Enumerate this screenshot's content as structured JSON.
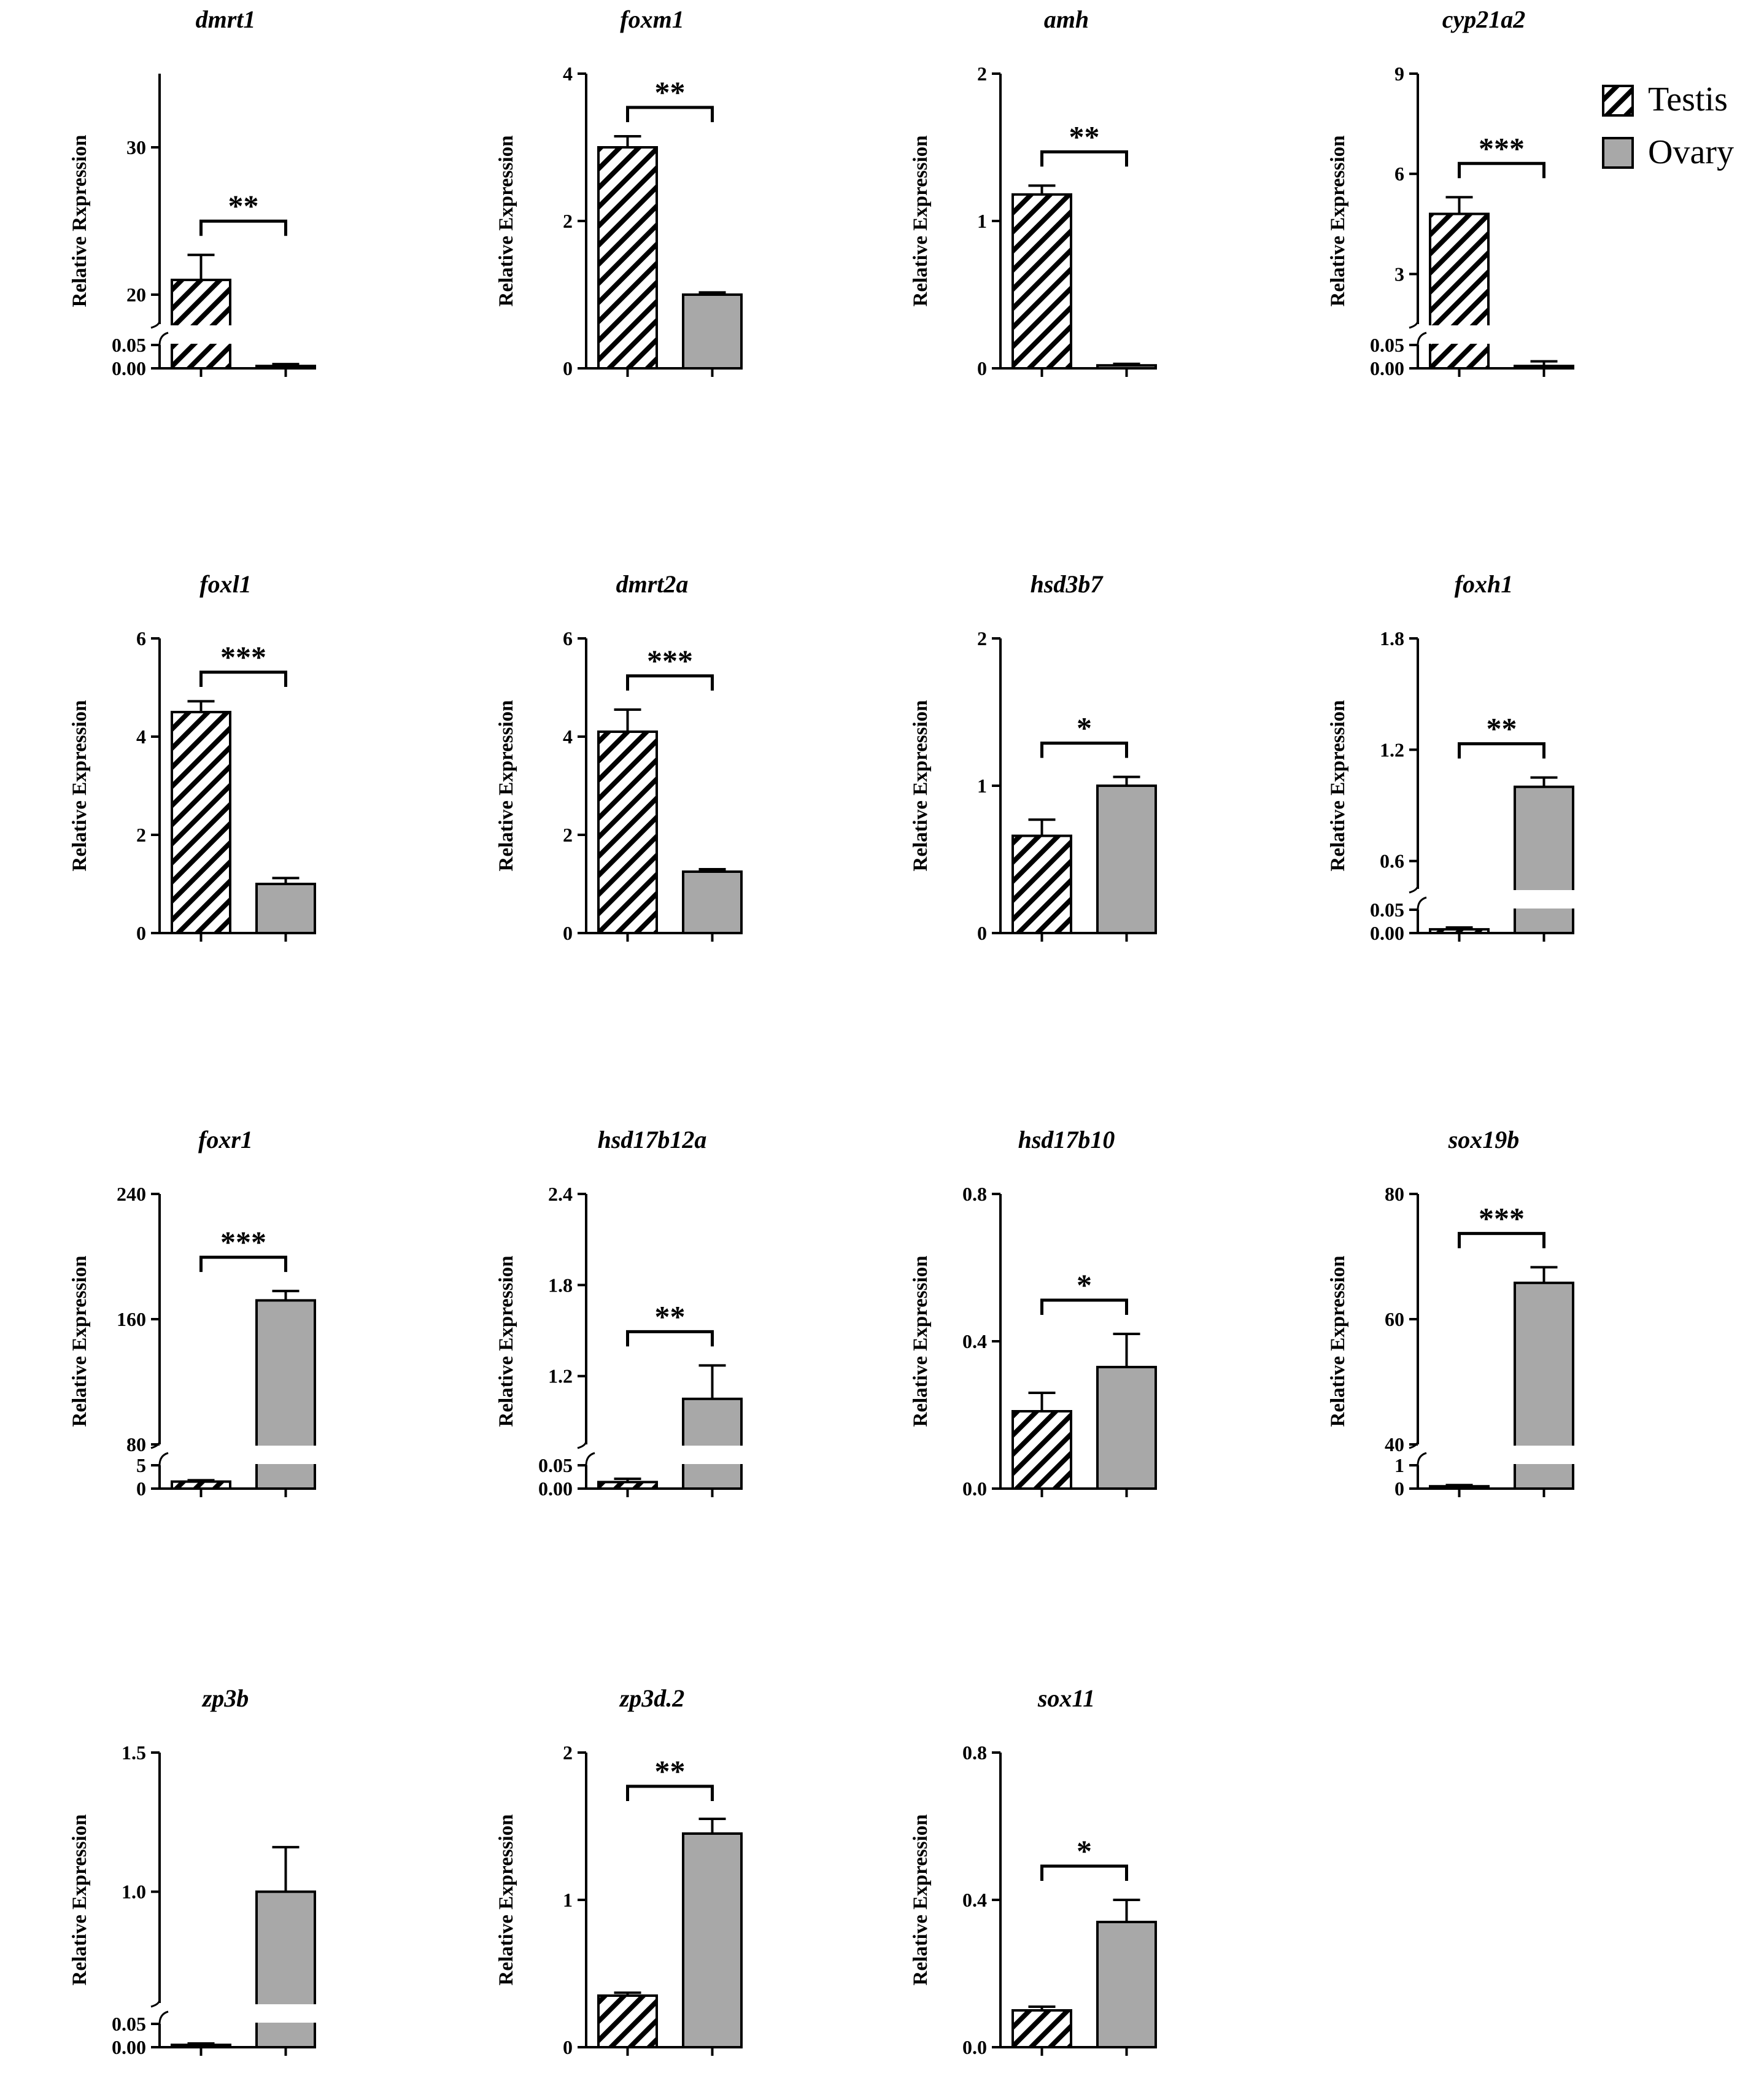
{
  "legend": {
    "testis_label": "Testis",
    "ovary_label": "Ovary"
  },
  "colors": {
    "ovary_fill": "#a8a8a8",
    "stroke": "#000000",
    "testis_fill": "#ffffff"
  },
  "chart_data": [
    {
      "type": "bar",
      "title": "dmrt1",
      "ylabel": "Relative Rxpression",
      "categories": [
        "Testis",
        "Ovary"
      ],
      "values": [
        21.0,
        0.005
      ],
      "errors": [
        1.7,
        0.004
      ],
      "significance": "**",
      "axis_break": true,
      "lower_range": [
        0,
        0.05
      ],
      "upper_range": [
        18,
        35
      ],
      "lower_ticks": [
        0.0,
        0.05
      ],
      "upper_ticks": [
        20,
        30
      ],
      "lower_tick_labels": [
        "0.00",
        "0.05"
      ],
      "upper_tick_labels": [
        "20",
        "30"
      ]
    },
    {
      "type": "bar",
      "title": "foxm1",
      "ylabel": "Relative Expression",
      "categories": [
        "Testis",
        "Ovary"
      ],
      "values": [
        3.0,
        1.0
      ],
      "errors": [
        0.15,
        0.03
      ],
      "significance": "**",
      "axis_break": false,
      "ylim": [
        0,
        4
      ],
      "ticks": [
        0,
        2,
        4
      ],
      "tick_labels": [
        "0",
        "2",
        "4"
      ]
    },
    {
      "type": "bar",
      "title": "amh",
      "ylabel": "Relative Expression",
      "categories": [
        "Testis",
        "Ovary"
      ],
      "values": [
        1.18,
        0.02
      ],
      "errors": [
        0.06,
        0.01
      ],
      "significance": "**",
      "axis_break": false,
      "ylim": [
        0,
        2
      ],
      "ticks": [
        0,
        1,
        2
      ],
      "tick_labels": [
        "0",
        "1",
        "2"
      ]
    },
    {
      "type": "bar",
      "title": "cyp21a2",
      "ylabel": "Relative Expression",
      "categories": [
        "Testis",
        "Ovary"
      ],
      "values": [
        4.8,
        0.005
      ],
      "errors": [
        0.5,
        0.01
      ],
      "significance": "***",
      "axis_break": true,
      "lower_range": [
        0,
        0.05
      ],
      "upper_range": [
        1.5,
        9
      ],
      "lower_ticks": [
        0.0,
        0.05
      ],
      "upper_ticks": [
        3,
        6,
        9
      ],
      "lower_tick_labels": [
        "0.00",
        "0.05"
      ],
      "upper_tick_labels": [
        "3",
        "6",
        "9"
      ]
    },
    {
      "type": "bar",
      "title": "foxl1",
      "ylabel": "Relative Expression",
      "categories": [
        "Testis",
        "Ovary"
      ],
      "values": [
        4.5,
        1.0
      ],
      "errors": [
        0.22,
        0.12
      ],
      "significance": "***",
      "axis_break": false,
      "ylim": [
        0,
        6
      ],
      "ticks": [
        0,
        2,
        4,
        6
      ],
      "tick_labels": [
        "0",
        "2",
        "4",
        "6"
      ]
    },
    {
      "type": "bar",
      "title": "dmrt2a",
      "ylabel": "Relative Expression",
      "categories": [
        "Testis",
        "Ovary"
      ],
      "values": [
        4.1,
        1.25
      ],
      "errors": [
        0.45,
        0.05
      ],
      "significance": "***",
      "axis_break": false,
      "ylim": [
        0,
        6
      ],
      "ticks": [
        0,
        2,
        4,
        6
      ],
      "tick_labels": [
        "0",
        "2",
        "4",
        "6"
      ]
    },
    {
      "type": "bar",
      "title": "hsd3b7",
      "ylabel": "Relative Expression",
      "categories": [
        "Testis",
        "Ovary"
      ],
      "values": [
        0.66,
        1.0
      ],
      "errors": [
        0.11,
        0.06
      ],
      "significance": "*",
      "axis_break": false,
      "ylim": [
        0,
        2
      ],
      "ticks": [
        0,
        1,
        2
      ],
      "tick_labels": [
        "0",
        "1",
        "2"
      ]
    },
    {
      "type": "bar",
      "title": "foxh1",
      "ylabel": "Relative Expression",
      "categories": [
        "Testis",
        "Ovary"
      ],
      "values": [
        0.008,
        1.0
      ],
      "errors": [
        0.004,
        0.05
      ],
      "significance": "**",
      "axis_break": true,
      "lower_range": [
        0,
        0.05
      ],
      "upper_range": [
        0.45,
        1.8
      ],
      "lower_ticks": [
        0.0,
        0.05
      ],
      "upper_ticks": [
        0.6,
        1.2,
        1.8
      ],
      "lower_tick_labels": [
        "0.00",
        "0.05"
      ],
      "upper_tick_labels": [
        "0.6",
        "1.2",
        "1.8"
      ]
    },
    {
      "type": "bar",
      "title": "foxr1",
      "ylabel": "Relative Expression",
      "categories": [
        "Testis",
        "Ovary"
      ],
      "values": [
        1.5,
        172
      ],
      "errors": [
        0.3,
        6
      ],
      "significance": "***",
      "axis_break": true,
      "lower_range": [
        0,
        5
      ],
      "upper_range": [
        80,
        240
      ],
      "lower_ticks": [
        0,
        5
      ],
      "upper_ticks": [
        80,
        160,
        240
      ],
      "lower_tick_labels": [
        "0",
        "5"
      ],
      "upper_tick_labels": [
        "80",
        "160",
        "240"
      ]
    },
    {
      "type": "bar",
      "title": "hsd17b12a",
      "ylabel": "Relative Expression",
      "categories": [
        "Testis",
        "Ovary"
      ],
      "values": [
        0.014,
        1.05
      ],
      "errors": [
        0.007,
        0.22
      ],
      "significance": "**",
      "axis_break": true,
      "lower_range": [
        0,
        0.05
      ],
      "upper_range": [
        0.75,
        2.4
      ],
      "lower_ticks": [
        0.0,
        0.05
      ],
      "upper_ticks": [
        1.2,
        1.8,
        2.4
      ],
      "lower_tick_labels": [
        "0.00",
        "0.05"
      ],
      "upper_tick_labels": [
        "1.2",
        "1.8",
        "2.4"
      ]
    },
    {
      "type": "bar",
      "title": "hsd17b10",
      "ylabel": "Relative Expression",
      "categories": [
        "Testis",
        "Ovary"
      ],
      "values": [
        0.21,
        0.33
      ],
      "errors": [
        0.05,
        0.09
      ],
      "significance": "*",
      "axis_break": false,
      "ylim": [
        0,
        0.8
      ],
      "ticks": [
        0,
        0.4,
        0.8
      ],
      "tick_labels": [
        "0.0",
        "0.4",
        "0.8"
      ]
    },
    {
      "type": "bar",
      "title": "sox19b",
      "ylabel": "Relative Expression",
      "categories": [
        "Testis",
        "Ovary"
      ],
      "values": [
        0.1,
        65.8
      ],
      "errors": [
        0.05,
        2.5
      ],
      "significance": "***",
      "axis_break": true,
      "lower_range": [
        0,
        1
      ],
      "upper_range": [
        40,
        80
      ],
      "lower_ticks": [
        0,
        1
      ],
      "upper_ticks": [
        40,
        60,
        80
      ],
      "lower_tick_labels": [
        "0",
        "1"
      ],
      "upper_tick_labels": [
        "40",
        "60",
        "80"
      ]
    },
    {
      "type": "bar",
      "title": "zp3b",
      "ylabel": "Relative Expression",
      "categories": [
        "Testis",
        "Ovary"
      ],
      "values": [
        0.005,
        1.0
      ],
      "errors": [
        0.003,
        0.16
      ],
      "significance": "",
      "axis_break": true,
      "lower_range": [
        0,
        0.05
      ],
      "upper_range": [
        0.6,
        1.5
      ],
      "lower_ticks": [
        0.0,
        0.05
      ],
      "upper_ticks": [
        1.0,
        1.5
      ],
      "lower_tick_labels": [
        "0.00",
        "0.05"
      ],
      "upper_tick_labels": [
        "1.0",
        "1.5"
      ]
    },
    {
      "type": "bar",
      "title": "zp3d.2",
      "ylabel": "Relative Expression",
      "categories": [
        "Testis",
        "Ovary"
      ],
      "values": [
        0.35,
        1.45
      ],
      "errors": [
        0.02,
        0.1
      ],
      "significance": "**",
      "axis_break": false,
      "ylim": [
        0,
        2
      ],
      "ticks": [
        0,
        1,
        2
      ],
      "tick_labels": [
        "0",
        "1",
        "2"
      ]
    },
    {
      "type": "bar",
      "title": "sox11",
      "ylabel": "Relative Expression",
      "categories": [
        "Testis",
        "Ovary"
      ],
      "values": [
        0.1,
        0.34
      ],
      "errors": [
        0.01,
        0.06
      ],
      "significance": "*",
      "axis_break": false,
      "ylim": [
        0,
        0.8
      ],
      "ticks": [
        0,
        0.4,
        0.8
      ],
      "tick_labels": [
        "0.0",
        "0.4",
        "0.8"
      ]
    }
  ]
}
